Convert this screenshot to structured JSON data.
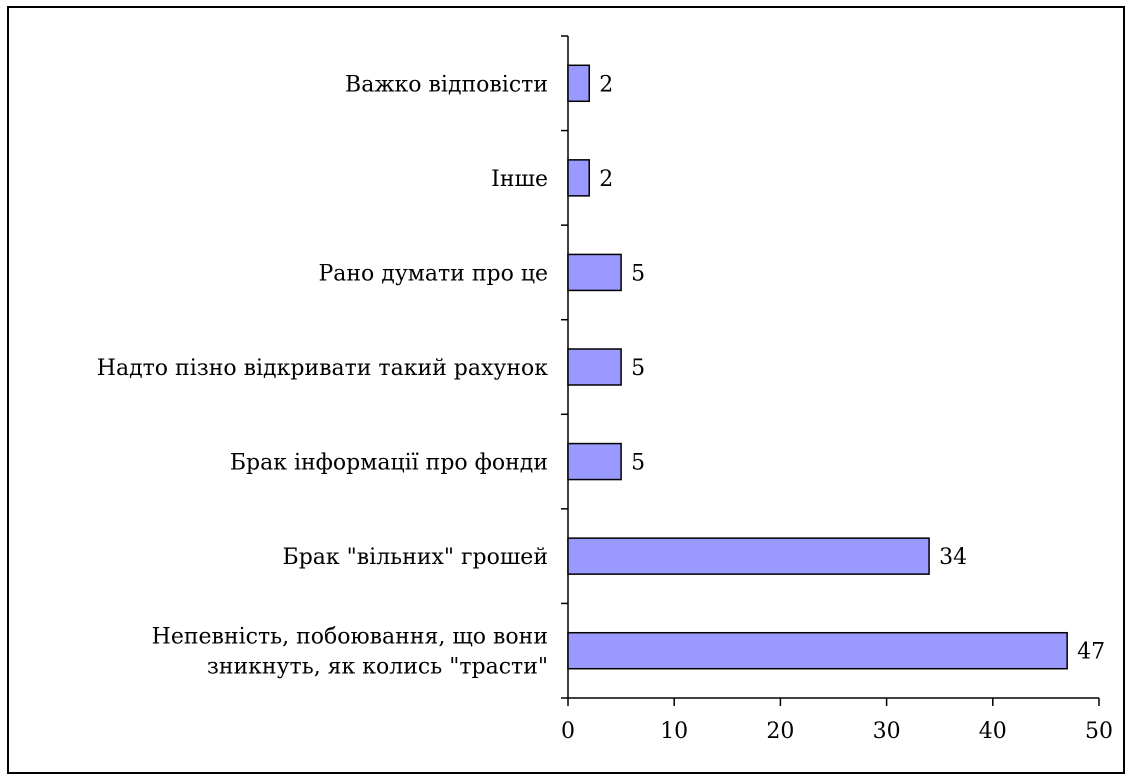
{
  "colors": {
    "bar_fill": "#9999FF",
    "bar_stroke": "#000000",
    "axis": "#000000",
    "background": "#FFFFFF"
  },
  "chart_data": {
    "type": "bar",
    "orientation": "horizontal",
    "title": "",
    "xlabel": "",
    "ylabel": "",
    "categories": [
      [
        "Непевність, побоювання, що вони",
        "зникнуть, як колись \"трасти\""
      ],
      [
        "Брак \"вільних\" грошей"
      ],
      [
        "Брак інформації про фонди"
      ],
      [
        "Надто пізно відкривати такий рахунок"
      ],
      [
        "Рано думати про це"
      ],
      [
        "Інше"
      ],
      [
        "Важко відповісти"
      ]
    ],
    "values": [
      47,
      34,
      5,
      5,
      5,
      2,
      2
    ],
    "data_labels": [
      "47",
      "34",
      "5",
      "5",
      "5",
      "2",
      "2"
    ],
    "xlim": [
      0,
      50
    ],
    "xticks": [
      0,
      10,
      20,
      30,
      40,
      50
    ],
    "xtick_labels": [
      "0",
      "10",
      "20",
      "30",
      "40",
      "50"
    ],
    "grid": false,
    "legend": "none"
  }
}
